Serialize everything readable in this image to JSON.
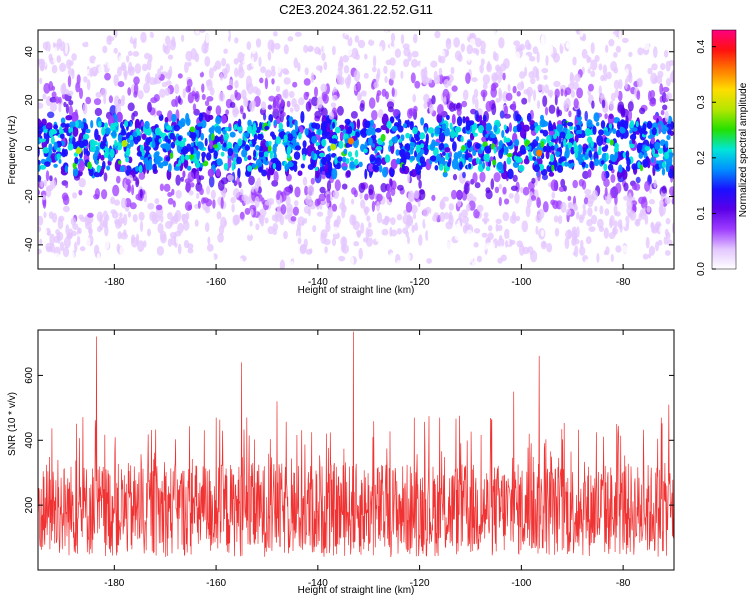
{
  "figure": {
    "title": "C2E3.2024.361.22.52.G11"
  },
  "chart_data": [
    {
      "type": "heatmap",
      "title": "C2E3.2024.361.22.52.G11",
      "xlabel": "Height of straight line (km)",
      "ylabel": "Frequency (Hz)",
      "xlim": [
        -195,
        -70
      ],
      "ylim": [
        -50,
        49
      ],
      "x_ticks": [
        -180,
        -160,
        -140,
        -120,
        -100,
        -80
      ],
      "y_ticks": [
        -40,
        -20,
        0,
        20,
        40
      ],
      "grid": false,
      "colorbar": {
        "label": "Normalized spectral amplitude",
        "range": [
          0.0,
          0.43
        ],
        "ticks": [
          0.0,
          0.1,
          0.2,
          0.3,
          0.4
        ],
        "colors": [
          "#ffffff",
          "#e3c6ff",
          "#9d3cff",
          "#5a00e8",
          "#1a10ff",
          "#0090ff",
          "#00e6d8",
          "#25e000",
          "#b4e600",
          "#ffdd00",
          "#ff7a00",
          "#ff1010",
          "#ff0080"
        ]
      },
      "description_band": {
        "center_hz": 1,
        "half_width_hz": 12
      }
    },
    {
      "type": "line",
      "xlabel": "Height of straight line (km)",
      "ylabel": "SNR (10 * v/v)",
      "xlim": [
        -195,
        -70
      ],
      "ylim": [
        0,
        740
      ],
      "x_ticks": [
        -180,
        -160,
        -140,
        -120,
        -100,
        -80
      ],
      "y_ticks": [
        200,
        400,
        600
      ],
      "grid": false,
      "series_color": "#f03232",
      "baseline_range": [
        40,
        330
      ],
      "peaks": [
        {
          "x": -183.5,
          "y": 720
        },
        {
          "x": -133,
          "y": 735
        },
        {
          "x": -160,
          "y": 470
        },
        {
          "x": -155,
          "y": 640
        },
        {
          "x": -148,
          "y": 520
        },
        {
          "x": -101.5,
          "y": 550
        },
        {
          "x": -96.5,
          "y": 660
        },
        {
          "x": -72.5,
          "y": 470
        },
        {
          "x": -71,
          "y": 510
        }
      ]
    }
  ]
}
